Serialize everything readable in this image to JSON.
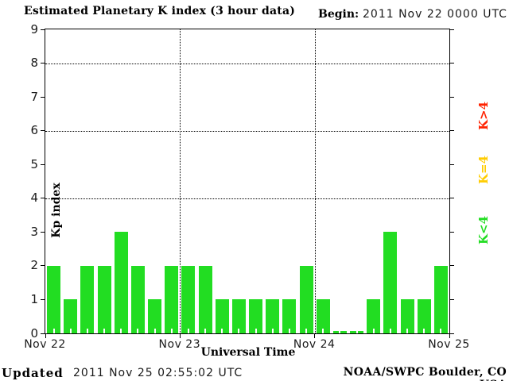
{
  "header": {
    "title": "Estimated Planetary K index (3 hour data)",
    "begin_label": "Begin:",
    "begin_value": "2011 Nov 22 0000 UTC"
  },
  "footer": {
    "updated_label": "Updated",
    "updated_value": "2011 Nov 25 02:55:02 UTC",
    "source": "NOAA/SWPC Boulder, CO USA"
  },
  "chart_data": {
    "type": "bar",
    "title": "Estimated Planetary K index (3 hour data)",
    "xlabel": "Universal Time",
    "ylabel": "Kp index",
    "ylim": [
      0,
      9
    ],
    "yticks": [
      0,
      1,
      2,
      3,
      4,
      5,
      6,
      7,
      8,
      9
    ],
    "grid_y_dotted": [
      4,
      6,
      8
    ],
    "grid": "dotted horizontal at Kp 4,6,8; dotted vertical at day boundaries",
    "interval_hours": 3,
    "x_day_labels": [
      "Nov 22",
      "Nov 23",
      "Nov 24",
      "Nov 25"
    ],
    "values": [
      2,
      1,
      2,
      2,
      3,
      2,
      1,
      2,
      2,
      2,
      1,
      1,
      1,
      1,
      1,
      2,
      1,
      0,
      0,
      1,
      3,
      1,
      1,
      2
    ],
    "series": [
      {
        "name": "Nov 22",
        "values": [
          2,
          1,
          2,
          2,
          3,
          2,
          1,
          2
        ]
      },
      {
        "name": "Nov 23",
        "values": [
          2,
          2,
          1,
          1,
          1,
          1,
          1,
          2
        ]
      },
      {
        "name": "Nov 24",
        "values": [
          1,
          0,
          0,
          1,
          3,
          1,
          1,
          2
        ]
      }
    ],
    "bar_color": "#22dd22",
    "legend_position": "right, rotated 90deg",
    "legend": [
      {
        "label": "K>4",
        "color": "#ff2200"
      },
      {
        "label": "K=4",
        "color": "#ffcc00"
      },
      {
        "label": "K<4",
        "color": "#22dd22"
      }
    ]
  }
}
